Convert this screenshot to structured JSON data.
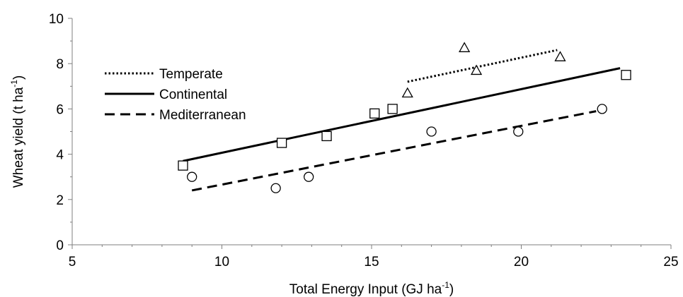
{
  "chart_data": {
    "type": "scatter",
    "xlabel": "Total Energy Input (GJ ha",
    "xlabel_sup": "-1",
    "xlabel_end": ")",
    "ylabel": "Wheat yield  (t ha",
    "ylabel_sup": "-1",
    "ylabel_end": ")",
    "xlim": [
      5,
      25
    ],
    "ylim": [
      0,
      10
    ],
    "xticks": [
      5,
      10,
      15,
      20,
      25
    ],
    "yticks": [
      0,
      2,
      4,
      6,
      8,
      10
    ],
    "x_minor_step": 1,
    "y_minor_step": 1,
    "legend_position": "top-left",
    "series": [
      {
        "name": "Temperate",
        "marker": "triangle",
        "line_style": "dotted",
        "points": [
          [
            16.2,
            6.7
          ],
          [
            18.1,
            8.7
          ],
          [
            18.5,
            7.7
          ],
          [
            21.3,
            8.3
          ]
        ],
        "trend": [
          [
            16.2,
            7.2
          ],
          [
            21.2,
            8.6
          ]
        ]
      },
      {
        "name": "Continental",
        "marker": "square",
        "line_style": "solid",
        "points": [
          [
            8.7,
            3.5
          ],
          [
            12.0,
            4.5
          ],
          [
            13.5,
            4.8
          ],
          [
            15.1,
            5.8
          ],
          [
            15.7,
            6.0
          ],
          [
            23.5,
            7.5
          ]
        ],
        "trend": [
          [
            8.7,
            3.7
          ],
          [
            23.3,
            7.8
          ]
        ]
      },
      {
        "name": "Mediterranean",
        "marker": "circle",
        "line_style": "dashed",
        "points": [
          [
            9.0,
            3.0
          ],
          [
            11.8,
            2.5
          ],
          [
            12.9,
            3.0
          ],
          [
            17.0,
            5.0
          ],
          [
            19.9,
            5.0
          ],
          [
            22.7,
            6.0
          ]
        ],
        "trend": [
          [
            9.0,
            2.4
          ],
          [
            22.5,
            5.9
          ]
        ]
      }
    ]
  }
}
